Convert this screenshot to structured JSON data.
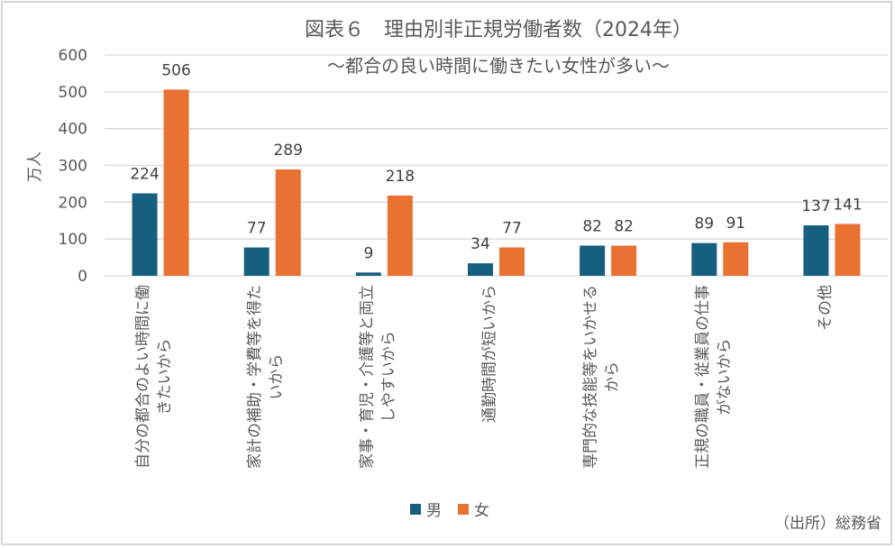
{
  "chart_data": {
    "type": "bar",
    "title": "図表６　理由別非正規労働者数（2024年）",
    "subtitle": "～都合の良い時間に働きたい女性が多い～",
    "ylabel": "万人",
    "ylim": [
      0,
      600
    ],
    "yticks": [
      0,
      100,
      200,
      300,
      400,
      500,
      600
    ],
    "grid": true,
    "legend_placement": "bottom",
    "categories": [
      [
        "自分の都合のよい時間に働",
        "きたいから"
      ],
      [
        "家計の補助・学費等を得た",
        "いから"
      ],
      [
        "家事・育児・介護等と両立",
        "しやすいから"
      ],
      [
        "通勤時間が短いから"
      ],
      [
        "専門的な技能等をいかせる",
        "から"
      ],
      [
        "正規の職員・従業員の仕事",
        "がないから"
      ],
      [
        "その他"
      ]
    ],
    "series": [
      {
        "name": "男",
        "color": "#165f7f",
        "values": [
          224,
          77,
          9,
          34,
          82,
          89,
          137
        ]
      },
      {
        "name": "女",
        "color": "#e97132",
        "values": [
          506,
          289,
          218,
          77,
          82,
          91,
          141
        ]
      }
    ],
    "source": "（出所）総務省"
  }
}
